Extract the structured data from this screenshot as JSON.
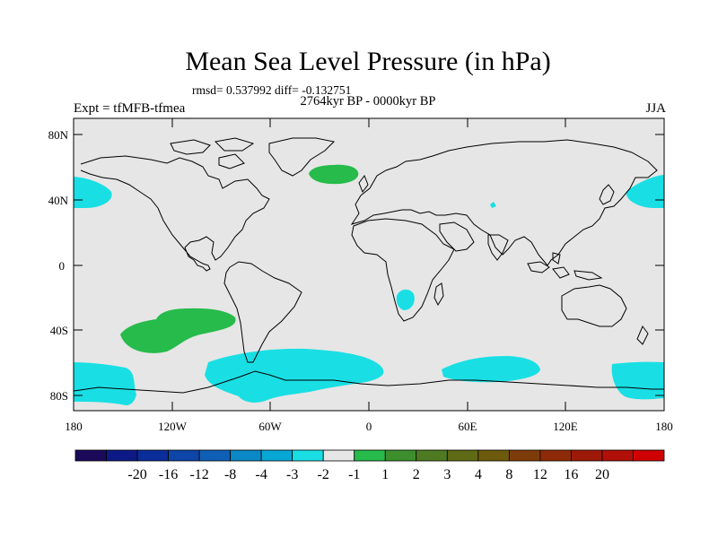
{
  "map": {
    "title": "Mean Sea Level Pressure (in hPa)",
    "stats": "rmsd= 0.537992 diff= -0.132751",
    "period": "2764kyr BP - 0000kyr BP",
    "experiment": "Expt = tfMFB-tfmea",
    "season": "JJA",
    "lat_ticks": [
      "80N",
      "40N",
      "0",
      "40S",
      "80S"
    ],
    "lon_ticks": [
      "180",
      "120W",
      "60W",
      "0",
      "60E",
      "120E",
      "180"
    ],
    "background_color": "#e6e6e6",
    "anomalies": [
      {
        "name": "North Atlantic high",
        "level": "1 to 2",
        "color": "#26bb4a"
      },
      {
        "name": "South Pacific high",
        "level": "1 to 2",
        "color": "#26bb4a"
      },
      {
        "name": "North Pacific low (east)",
        "level": "-2 to -1",
        "color": "#19dfe4"
      },
      {
        "name": "North Pacific low (west)",
        "level": "-2 to -1",
        "color": "#19dfe4"
      },
      {
        "name": "Southern Ocean low",
        "level": "-2 to -1",
        "color": "#19dfe4"
      },
      {
        "name": "Southern Africa low",
        "level": "-2 to -1",
        "color": "#19dfe4"
      }
    ]
  },
  "colorbar": {
    "colors": [
      "#1b0a5a",
      "#0d1a86",
      "#0a2d99",
      "#0d45a8",
      "#0f5fb6",
      "#0b88c6",
      "#08a8d6",
      "#19dfe4",
      "#e6e6e6",
      "#26bb4a",
      "#3d8f2e",
      "#4e7a22",
      "#5f6a14",
      "#6e5a0c",
      "#7e3c0a",
      "#8e2a08",
      "#9e1a08",
      "#b01008",
      "#d00000"
    ],
    "labels": [
      "-20",
      "-16",
      "-12",
      "-8",
      "-4",
      "-3",
      "-2",
      "-1",
      "1",
      "2",
      "3",
      "4",
      "8",
      "12",
      "16",
      "20"
    ]
  }
}
